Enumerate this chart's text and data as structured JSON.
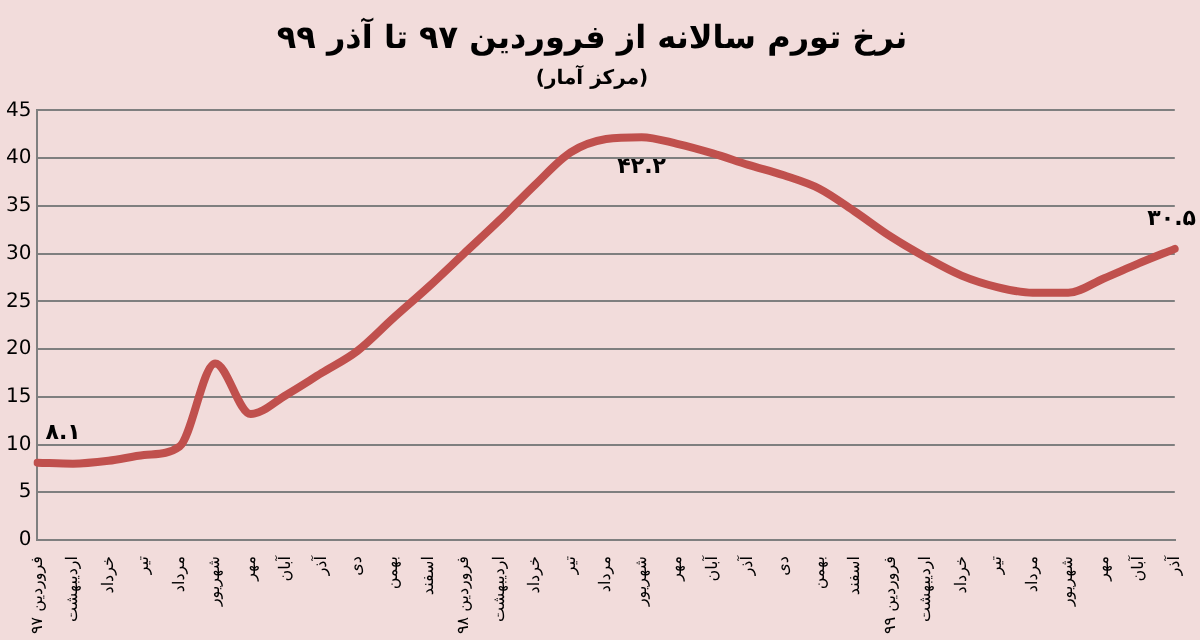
{
  "chart_data": {
    "type": "line",
    "title": "نرخ تورم سالانه از فروردین ۹۷ تا آذر ۹۹",
    "subtitle": "(مرکز آمار)",
    "categories": [
      "فروردین ۹۷",
      "اردیبهشت",
      "خرداد",
      "تیر",
      "مرداد",
      "شهریور",
      "مهر",
      "آبان",
      "آذر",
      "دی",
      "بهمن",
      "اسفند",
      "فروردین ۹۸",
      "اردیبهشت",
      "خرداد",
      "تیر",
      "مرداد",
      "شهریور",
      "مهر",
      "آبان",
      "آذر",
      "دی",
      "بهمن",
      "اسفند",
      "فروردین ۹۹",
      "اردیبهشت",
      "خرداد",
      "تیر",
      "مرداد",
      "شهریور",
      "مهر",
      "آبان",
      "آذر"
    ],
    "series": [
      {
        "color": "#c0504d",
        "values": [
          8.1,
          8.0,
          8.3,
          8.9,
          9.8,
          18.5,
          13.2,
          15.2,
          17.5,
          19.8,
          23.2,
          26.5,
          30.0,
          33.5,
          37.2,
          40.6,
          42.0,
          42.2,
          41.5,
          40.5,
          39.3,
          38.2,
          36.8,
          34.4,
          31.8,
          29.6,
          27.7,
          26.5,
          25.9,
          25.9,
          27.4,
          29.0,
          30.5
        ],
        "value_labels": [
          "۸.۱",
          null,
          null,
          null,
          null,
          null,
          null,
          null,
          null,
          null,
          null,
          null,
          null,
          null,
          null,
          null,
          null,
          "۴۲.۲",
          null,
          null,
          null,
          null,
          null,
          null,
          null,
          null,
          null,
          null,
          null,
          null,
          null,
          null,
          "۳۰.۵"
        ]
      }
    ],
    "ylim": [
      0,
      45
    ],
    "yticks": [
      0,
      5,
      10,
      15,
      20,
      25,
      30,
      35,
      40,
      45
    ],
    "grid": "y",
    "legend": false,
    "marker": "none",
    "line_style": "solid"
  }
}
